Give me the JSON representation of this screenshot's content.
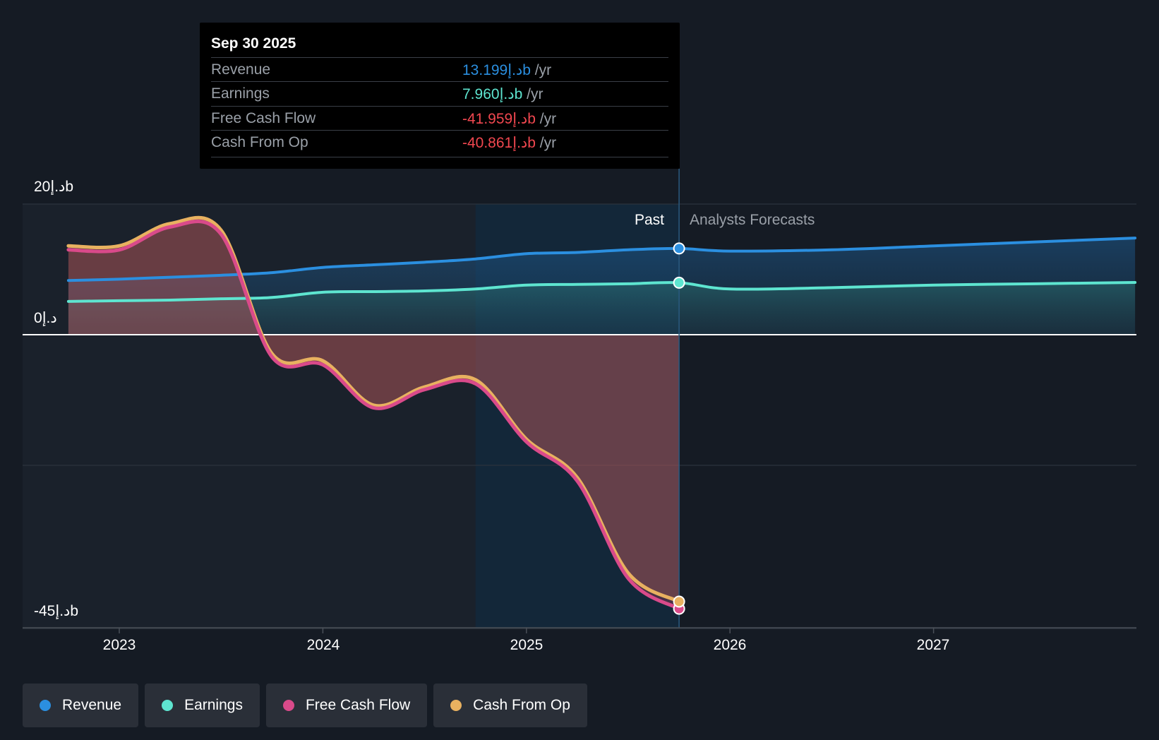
{
  "tooltip": {
    "date": "Sep 30 2025",
    "rows": [
      {
        "label": "Revenue",
        "value": "13.199د.إb",
        "unit": "/yr",
        "color": "#2b8fe0"
      },
      {
        "label": "Earnings",
        "value": "7.960د.إb",
        "unit": "/yr",
        "color": "#5ee5d0"
      },
      {
        "label": "Free Cash Flow",
        "value": "-41.959د.إb",
        "unit": "/yr",
        "color": "#f0474f"
      },
      {
        "label": "Cash From Op",
        "value": "-40.861د.إb",
        "unit": "/yr",
        "color": "#f0474f"
      }
    ]
  },
  "labels": {
    "past": "Past",
    "forecast": "Analysts Forecasts"
  },
  "chart_data": {
    "type": "line",
    "ylim": [
      -45,
      20
    ],
    "y_ticks": [
      {
        "value": 20,
        "label": "20د.إb"
      },
      {
        "value": 0,
        "label": "0د.إ"
      },
      {
        "value": -45,
        "label": "-45د.إb"
      }
    ],
    "x_ticks": [
      "2023",
      "2024",
      "2025",
      "2026",
      "2027"
    ],
    "past_end": 2025.75,
    "highlight_start": 2024.75,
    "series": [
      {
        "name": "Revenue",
        "color": "#2b8fe0",
        "x": [
          2022.75,
          2023.0,
          2023.25,
          2023.5,
          2023.75,
          2024.0,
          2024.25,
          2024.5,
          2024.75,
          2025.0,
          2025.25,
          2025.5,
          2025.75,
          2026.0,
          2026.5,
          2027.0,
          2027.5,
          2027.99
        ],
        "y": [
          8.3,
          8.5,
          8.8,
          9.1,
          9.5,
          10.3,
          10.7,
          11.1,
          11.6,
          12.4,
          12.6,
          13.0,
          13.2,
          12.8,
          13.0,
          13.6,
          14.2,
          14.8
        ]
      },
      {
        "name": "Earnings",
        "color": "#5ee5d0",
        "x": [
          2022.75,
          2023.0,
          2023.25,
          2023.5,
          2023.75,
          2024.0,
          2024.25,
          2024.5,
          2024.75,
          2025.0,
          2025.25,
          2025.5,
          2025.75,
          2026.0,
          2026.5,
          2027.0,
          2027.5,
          2027.99
        ],
        "y": [
          5.1,
          5.2,
          5.3,
          5.5,
          5.7,
          6.5,
          6.6,
          6.7,
          7.0,
          7.6,
          7.7,
          7.8,
          7.96,
          7.0,
          7.2,
          7.6,
          7.8,
          8.0
        ]
      },
      {
        "name": "Free Cash Flow",
        "color": "#d94a8a",
        "x": [
          2022.75,
          2023.0,
          2023.25,
          2023.5,
          2023.75,
          2024.0,
          2024.25,
          2024.5,
          2024.75,
          2025.0,
          2025.25,
          2025.5,
          2025.75
        ],
        "y": [
          13.0,
          13.0,
          16.5,
          15.4,
          -3.4,
          -4.6,
          -11.2,
          -8.4,
          -7.5,
          -16.4,
          -22.4,
          -37.3,
          -41.96
        ]
      },
      {
        "name": "Cash From Op",
        "color": "#e8b160",
        "x": [
          2022.75,
          2023.0,
          2023.25,
          2023.5,
          2023.75,
          2024.0,
          2024.25,
          2024.5,
          2024.75,
          2025.0,
          2025.25,
          2025.5,
          2025.75
        ],
        "y": [
          13.6,
          13.6,
          17.0,
          16.0,
          -2.9,
          -4.0,
          -10.8,
          -8.0,
          -6.9,
          -16.0,
          -21.9,
          -36.5,
          -40.86
        ]
      }
    ]
  },
  "legend": [
    {
      "label": "Revenue",
      "color": "#2b8fe0"
    },
    {
      "label": "Earnings",
      "color": "#5ee5d0"
    },
    {
      "label": "Free Cash Flow",
      "color": "#d94a8a"
    },
    {
      "label": "Cash From Op",
      "color": "#e8b160"
    }
  ]
}
